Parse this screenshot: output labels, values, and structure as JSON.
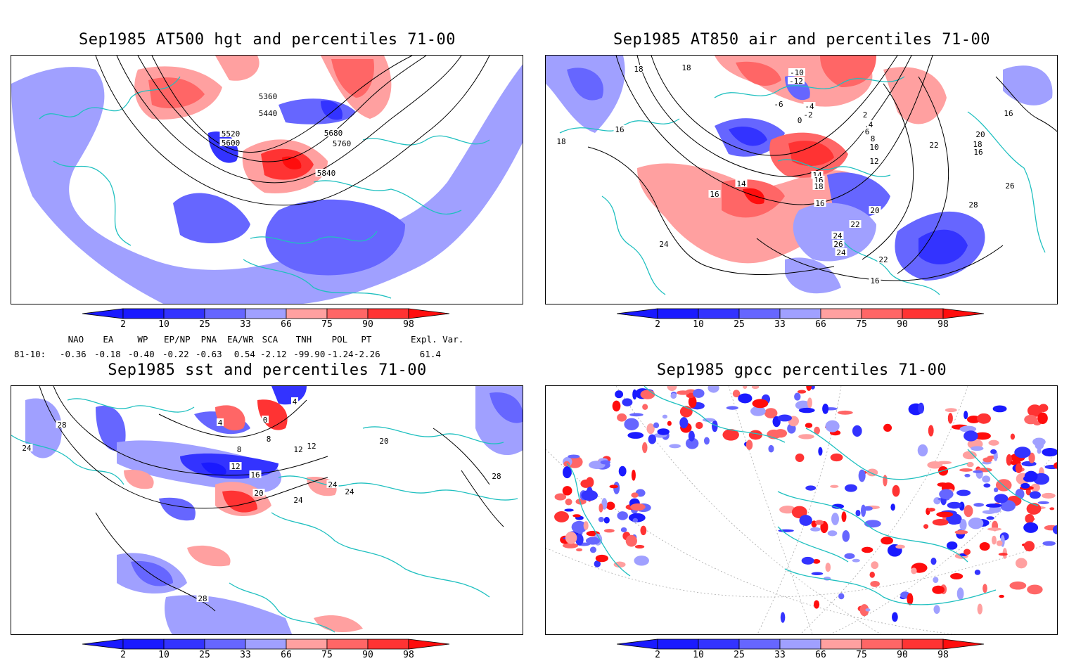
{
  "panels": [
    {
      "id": "hgt",
      "title": "Sep1985 AT500 hgt and percentiles 71-00",
      "contour_labels": [
        "5360",
        "5440",
        "5520",
        "5600",
        "5680",
        "5760",
        "5840"
      ]
    },
    {
      "id": "air",
      "title": "Sep1985 AT850 air and percentiles 71-00",
      "contour_labels": [
        "18",
        "16",
        "18",
        "14",
        "16",
        "16",
        "-10",
        "-12",
        "-6",
        "-4",
        "-2",
        "0",
        "2",
        "4",
        "6",
        "8",
        "10",
        "12",
        "14",
        "16",
        "18",
        "20",
        "22",
        "24",
        "26",
        "24",
        "22",
        "20",
        "18",
        "16",
        "22",
        "24",
        "26",
        "28",
        "16",
        "18",
        "16",
        "16"
      ]
    },
    {
      "id": "sst",
      "title": "Sep1985 sst and percentiles 71-00",
      "contour_labels": [
        "28",
        "24",
        "4",
        "0",
        "4",
        "8",
        "8",
        "12",
        "12",
        "12",
        "16",
        "20",
        "20",
        "24",
        "24",
        "24",
        "28",
        "28"
      ]
    },
    {
      "id": "gpcc",
      "title": "Sep1985 gpcc percentiles 71-00",
      "contour_labels": []
    }
  ],
  "colorbar": {
    "labels": [
      "2",
      "10",
      "25",
      "33",
      "66",
      "75",
      "90",
      "98"
    ],
    "colors": {
      "below": [
        "#1a1aff",
        "#3333ff",
        "#6666ff",
        "#a0a0ff"
      ],
      "above": [
        "#ffa0a0",
        "#ff6666",
        "#ff3333",
        "#ff0d0d"
      ]
    }
  },
  "indices": {
    "headers": [
      "NAO",
      "EA",
      "WP",
      "EP/NP",
      "PNA",
      "EA/WR",
      "SCA",
      "TNH",
      "POL",
      "PT",
      "Expl. Var."
    ],
    "row_label": "81-10:",
    "values": [
      "-0.36",
      "-0.18",
      "-0.40",
      "-0.22",
      "-0.63",
      "0.54",
      "-2.12",
      "-99.90",
      "-1.24",
      "-2.26",
      "61.4"
    ]
  }
}
